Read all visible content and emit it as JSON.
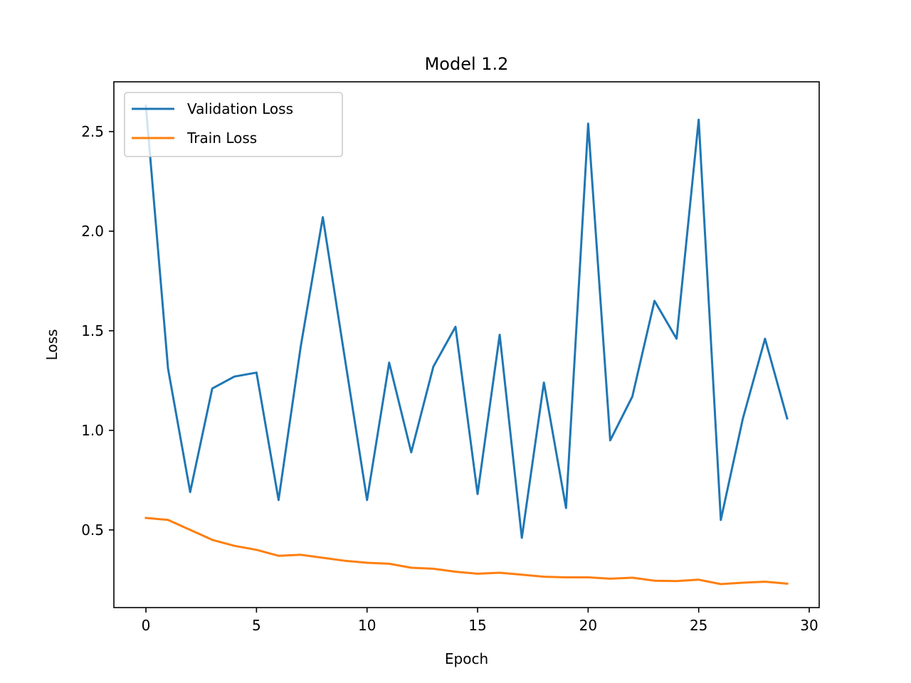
{
  "chart_data": {
    "type": "line",
    "title": "Model 1.2",
    "xlabel": "Epoch",
    "ylabel": "Loss",
    "xlim": [
      -1.45,
      30.45
    ],
    "ylim": [
      0.11,
      2.75
    ],
    "xticks": [
      0,
      5,
      10,
      15,
      20,
      25,
      30
    ],
    "xtick_labels": [
      "0",
      "5",
      "10",
      "15",
      "20",
      "25",
      "30"
    ],
    "yticks": [
      0.5,
      1.0,
      1.5,
      2.0,
      2.5
    ],
    "ytick_labels": [
      "0.5",
      "1.0",
      "1.5",
      "2.0",
      "2.5"
    ],
    "grid": false,
    "legend_position": "top-left",
    "x": [
      0,
      1,
      2,
      3,
      4,
      5,
      6,
      7,
      8,
      9,
      10,
      11,
      12,
      13,
      14,
      15,
      16,
      17,
      18,
      19,
      20,
      21,
      22,
      23,
      24,
      25,
      26,
      27,
      28,
      29
    ],
    "series": [
      {
        "name": "Validation Loss",
        "color": "#1f77b4",
        "values": [
          2.63,
          1.31,
          0.69,
          1.21,
          1.27,
          1.29,
          0.65,
          1.42,
          2.07,
          1.36,
          0.65,
          1.34,
          0.89,
          1.32,
          1.52,
          0.68,
          1.48,
          0.46,
          1.24,
          0.61,
          2.54,
          0.95,
          1.17,
          1.65,
          1.46,
          2.56,
          0.55,
          1.06,
          1.46,
          1.06
        ]
      },
      {
        "name": "Train Loss",
        "color": "#ff7f0e",
        "values": [
          0.56,
          0.55,
          0.5,
          0.45,
          0.42,
          0.4,
          0.37,
          0.375,
          0.36,
          0.345,
          0.335,
          0.33,
          0.31,
          0.305,
          0.29,
          0.28,
          0.285,
          0.275,
          0.265,
          0.262,
          0.262,
          0.255,
          0.26,
          0.245,
          0.243,
          0.25,
          0.228,
          0.235,
          0.24,
          0.23
        ]
      }
    ]
  }
}
